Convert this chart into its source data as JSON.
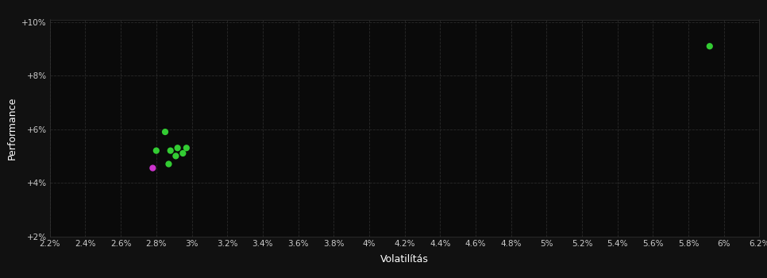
{
  "background_color": "#111111",
  "plot_bg_color": "#0a0a0a",
  "grid_color": "#2a2a2a",
  "xlabel": "Volatilítás",
  "ylabel": "Performance",
  "xlim": [
    0.022,
    0.062
  ],
  "ylim": [
    0.02,
    0.101
  ],
  "xticks": [
    0.022,
    0.024,
    0.026,
    0.028,
    0.03,
    0.032,
    0.034,
    0.036,
    0.038,
    0.04,
    0.042,
    0.044,
    0.046,
    0.048,
    0.05,
    0.052,
    0.054,
    0.056,
    0.058,
    0.06,
    0.062
  ],
  "yticks": [
    0.02,
    0.04,
    0.06,
    0.08,
    0.1
  ],
  "ytick_labels": [
    "+2%",
    "+4%",
    "+6%",
    "+8%",
    "+10%"
  ],
  "xtick_labels": [
    "2.2%",
    "2.4%",
    "2.6%",
    "2.8%",
    "3%",
    "3.2%",
    "3.4%",
    "3.6%",
    "3.8%",
    "4%",
    "4.2%",
    "4.4%",
    "4.6%",
    "4.8%",
    "5%",
    "5.2%",
    "5.4%",
    "5.6%",
    "5.8%",
    "6%",
    "6.2%"
  ],
  "green_points": [
    [
      0.0285,
      0.059
    ],
    [
      0.028,
      0.052
    ],
    [
      0.0288,
      0.052
    ],
    [
      0.0292,
      0.053
    ],
    [
      0.0295,
      0.051
    ],
    [
      0.0297,
      0.053
    ],
    [
      0.0291,
      0.05
    ],
    [
      0.0287,
      0.047
    ],
    [
      0.0592,
      0.091
    ]
  ],
  "magenta_points": [
    [
      0.0278,
      0.0455
    ]
  ],
  "point_size": 35,
  "text_color": "#ffffff",
  "tick_color": "#cccccc",
  "axis_color": "#333333"
}
